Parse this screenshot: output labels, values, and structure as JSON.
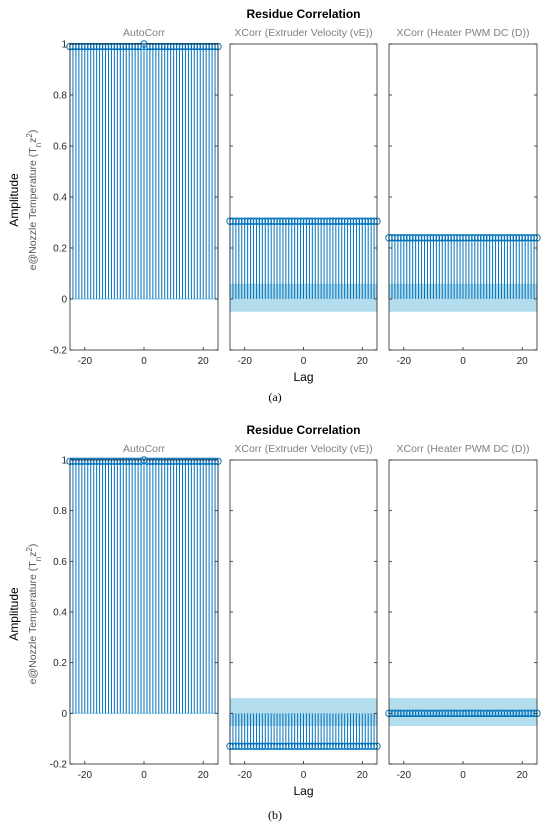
{
  "chart_data": [
    {
      "type": "stem",
      "panel_label": "(a)",
      "title": "Residue Correlation",
      "xlabel": "Lag",
      "ylabel": "Amplitude",
      "ylabel_sub": "e@Nozzle Temperature (T",
      "ylabel_sub_subscript": "n",
      "ylabel_sub_z": "z",
      "ylabel_sub_sup": "2",
      "ylabel_sub_close": ")",
      "ylim": [
        -0.2,
        1.0
      ],
      "yticks": [
        -0.2,
        0,
        0.2,
        0.4,
        0.6,
        0.8,
        1
      ],
      "xlim": [
        -25,
        25
      ],
      "xticks": [
        -20,
        0,
        20
      ],
      "subplots": [
        {
          "title": "AutoCorr",
          "stem_value": 0.99,
          "center_value": 1.0,
          "confidence_band": [
            -0.003,
            0.003
          ]
        },
        {
          "title": "XCorr (Extruder Velocity (vE))",
          "stem_value": 0.305,
          "confidence_band": [
            -0.05,
            0.06
          ]
        },
        {
          "title": "XCorr (Heater PWM DC (D))",
          "stem_value": 0.24,
          "confidence_band": [
            -0.05,
            0.06
          ]
        }
      ]
    },
    {
      "type": "stem",
      "panel_label": "(b)",
      "title": "Residue Correlation",
      "xlabel": "Lag",
      "ylabel": "Amplitude",
      "ylabel_sub": "e@Nozzle Temperature (T",
      "ylabel_sub_subscript": "n",
      "ylabel_sub_z": "z",
      "ylabel_sub_sup": "2",
      "ylabel_sub_close": ")",
      "ylim": [
        -0.2,
        1.0
      ],
      "yticks": [
        -0.2,
        0,
        0.2,
        0.4,
        0.6,
        0.8,
        1
      ],
      "xlim": [
        -25,
        25
      ],
      "xticks": [
        -20,
        0,
        20
      ],
      "subplots": [
        {
          "title": "AutoCorr",
          "stem_value": 0.995,
          "center_value": 1.0,
          "confidence_band": [
            -0.003,
            0.003
          ]
        },
        {
          "title": "XCorr (Extruder Velocity (vE))",
          "stem_value": -0.13,
          "confidence_band": [
            -0.05,
            0.06
          ]
        },
        {
          "title": "XCorr (Heater PWM DC (D))",
          "stem_value": 0.0,
          "confidence_band": [
            -0.05,
            0.06
          ]
        }
      ]
    }
  ],
  "colors": {
    "stem": "#0072BD",
    "band": "#A6D7EA",
    "axis": "#262626",
    "subtitle": "#808080"
  }
}
